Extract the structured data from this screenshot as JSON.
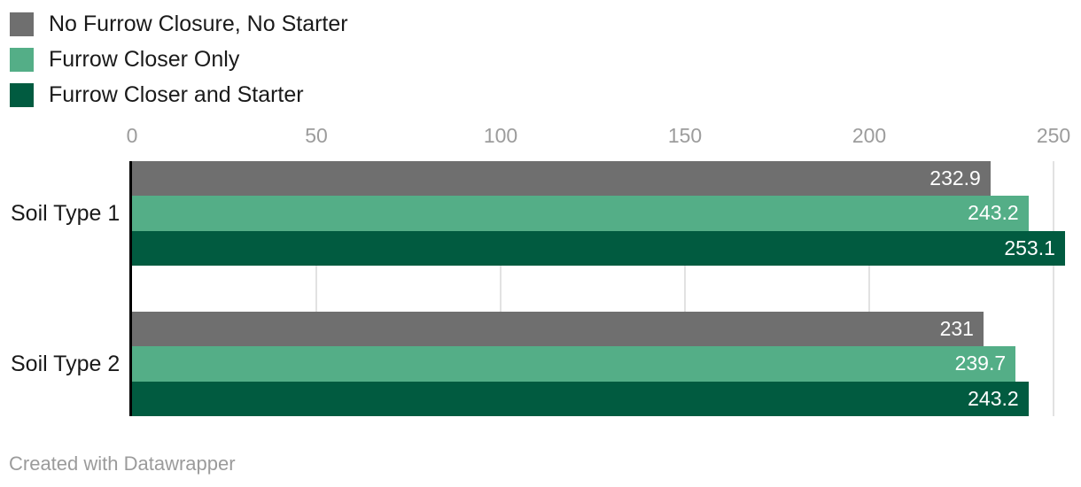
{
  "chart_data": {
    "type": "bar",
    "orientation": "horizontal",
    "categories": [
      "Soil Type 1",
      "Soil Type 2"
    ],
    "series": [
      {
        "name": "No Furrow Closure, No Starter",
        "color": "#6f6f6f",
        "values": [
          232.9,
          231
        ]
      },
      {
        "name": "Furrow Closer Only",
        "color": "#54ae87",
        "values": [
          243.2,
          239.7
        ]
      },
      {
        "name": "Furrow Closer and Starter",
        "color": "#015b40",
        "values": [
          253.1,
          243.2
        ]
      }
    ],
    "x_ticks": [
      0,
      50,
      100,
      150,
      200,
      250
    ],
    "xlim": [
      0,
      250
    ],
    "grid": true,
    "legend_position": "top-left",
    "value_labels_inside_bars": true,
    "value_label_color": "#ffffff"
  },
  "colors": {
    "background": "#ffffff",
    "axis_line": "#000000",
    "gridline": "#e2e2e2",
    "tick_label": "#9c9c9c",
    "category_label": "#1a1a1a",
    "legend_label": "#1a1a1a",
    "footer_text": "#9b9b9b"
  },
  "footer": {
    "credit": "Created with Datawrapper"
  }
}
